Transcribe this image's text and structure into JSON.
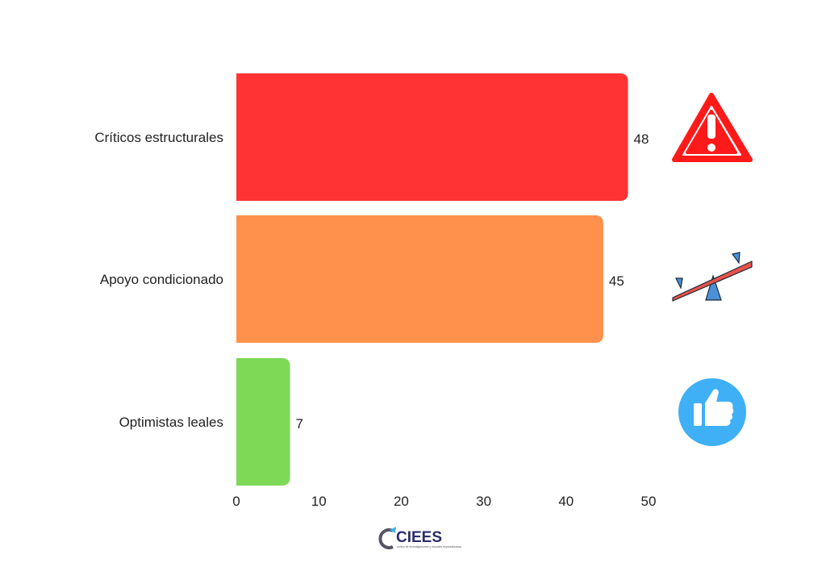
{
  "chart_data": {
    "type": "bar",
    "orientation": "horizontal",
    "title": "",
    "xlabel": "",
    "ylabel": "",
    "categories": [
      "Críticos estructurales",
      "Apoyo condicionado",
      "Optimistas leales"
    ],
    "values": [
      48,
      45,
      7
    ],
    "colors": [
      "#ff3333",
      "#ff914d",
      "#7ed957"
    ],
    "icons": [
      "warning-icon",
      "seesaw-icon",
      "thumbs-up-icon"
    ],
    "xlim": [
      0,
      50
    ],
    "xticks": [
      0,
      10,
      20,
      30,
      40,
      50
    ],
    "grid": false
  },
  "logo": {
    "text": "CIEES",
    "subtitle": "centro de investigaciones y estudios especializados"
  }
}
